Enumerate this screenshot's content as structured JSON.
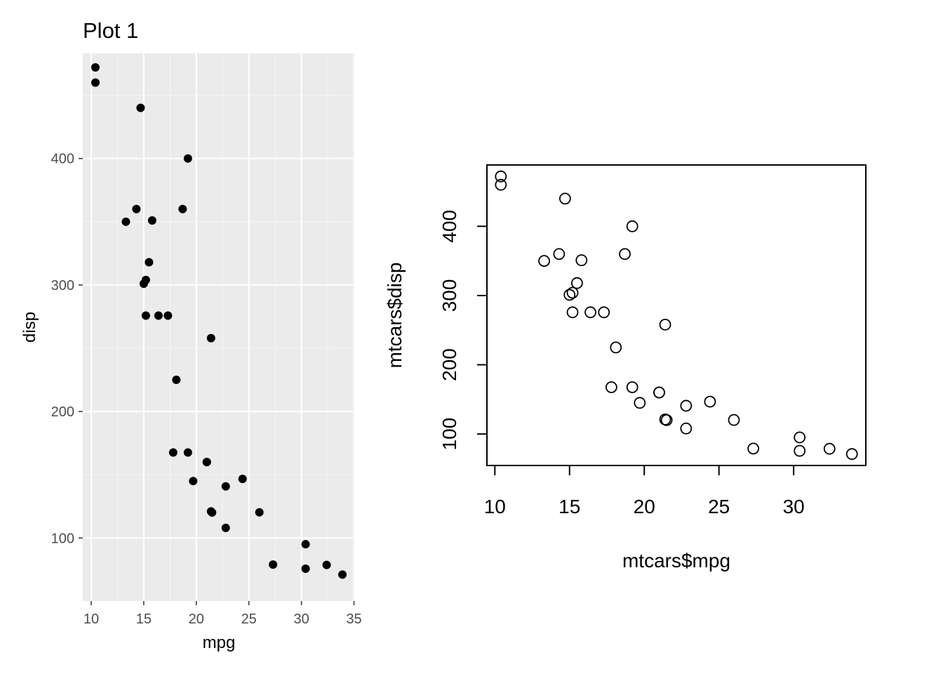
{
  "chart_data": [
    {
      "type": "scatter",
      "title": "Plot 1",
      "xlabel": "mpg",
      "ylabel": "disp",
      "xlim": [
        9.2,
        35.1
      ],
      "ylim": [
        50.2,
        483.1
      ],
      "x_ticks": [
        10,
        15,
        20,
        25,
        30,
        35
      ],
      "y_ticks": [
        100,
        200,
        300,
        400
      ],
      "grid": true,
      "style": "ggplot2",
      "marker": "filled-circle",
      "x": [
        21,
        21,
        22.8,
        21.4,
        18.7,
        18.1,
        14.3,
        24.4,
        22.8,
        19.2,
        17.8,
        16.4,
        17.3,
        15.2,
        10.4,
        10.4,
        14.7,
        32.4,
        30.4,
        33.9,
        21.5,
        15.5,
        15.2,
        13.3,
        19.2,
        27.3,
        26,
        30.4,
        15.8,
        19.7,
        15,
        21.4
      ],
      "y": [
        160,
        160,
        108,
        258,
        360,
        225,
        360,
        146.7,
        140.8,
        167.6,
        167.6,
        275.8,
        275.8,
        275.8,
        472,
        460,
        440,
        78.7,
        75.7,
        71.1,
        120.1,
        318,
        304,
        350,
        400,
        79,
        120.3,
        95.1,
        351,
        145,
        301,
        121
      ]
    },
    {
      "type": "scatter",
      "title": "",
      "xlabel": "mtcars$mpg",
      "ylabel": "mtcars$disp",
      "xlim": [
        9.47,
        34.83
      ],
      "ylim": [
        54.54,
        488.56
      ],
      "x_ticks": [
        10,
        15,
        20,
        25,
        30
      ],
      "y_ticks": [
        100,
        200,
        300,
        400
      ],
      "grid": false,
      "style": "base-r",
      "marker": "open-circle",
      "x": [
        21,
        21,
        22.8,
        21.4,
        18.7,
        18.1,
        14.3,
        24.4,
        22.8,
        19.2,
        17.8,
        16.4,
        17.3,
        15.2,
        10.4,
        10.4,
        14.7,
        32.4,
        30.4,
        33.9,
        21.5,
        15.5,
        15.2,
        13.3,
        19.2,
        27.3,
        26,
        30.4,
        15.8,
        19.7,
        15,
        21.4
      ],
      "y": [
        160,
        160,
        108,
        258,
        360,
        225,
        360,
        146.7,
        140.8,
        167.6,
        167.6,
        275.8,
        275.8,
        275.8,
        472,
        460,
        440,
        78.7,
        75.7,
        71.1,
        120.1,
        318,
        304,
        350,
        400,
        79,
        120.3,
        95.1,
        351,
        145,
        301,
        121
      ]
    }
  ],
  "colors": {
    "panel_bg": "#ebebeb",
    "grid_major": "#ffffff",
    "grid_minor": "#f5f5f5",
    "tick_text": "#4d4d4d",
    "point": "#000000"
  }
}
